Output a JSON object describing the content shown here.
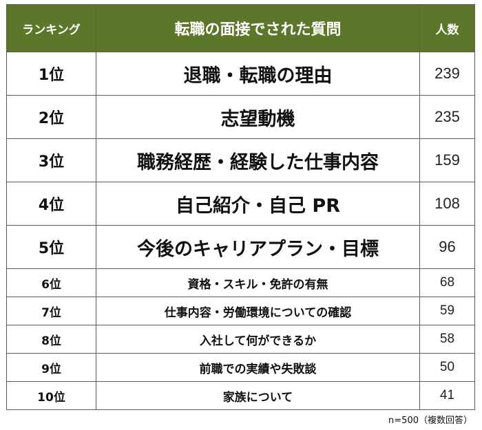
{
  "table": {
    "headers": {
      "rank": "ランキング",
      "question": "転職の面接でされた質問",
      "count": "人数"
    },
    "rows": [
      {
        "rank": "1位",
        "question": "退職・転職の理由",
        "count": "239"
      },
      {
        "rank": "2位",
        "question": "志望動機",
        "count": "235"
      },
      {
        "rank": "3位",
        "question": "職務経歴・経験した仕事内容",
        "count": "159"
      },
      {
        "rank": "4位",
        "question": "自己紹介・自己 PR",
        "count": "108"
      },
      {
        "rank": "5位",
        "question": "今後のキャリアプラン・目標",
        "count": "96"
      },
      {
        "rank": "6位",
        "question": "資格・スキル・免許の有無",
        "count": "68"
      },
      {
        "rank": "7位",
        "question": "仕事内容・労働環境についての確認",
        "count": "59"
      },
      {
        "rank": "8位",
        "question": "入社して何ができるか",
        "count": "58"
      },
      {
        "rank": "9位",
        "question": "前職での実績や失敗談",
        "count": "50"
      },
      {
        "rank": "10位",
        "question": "家族について",
        "count": "41"
      }
    ]
  },
  "footnote": "n=500（複数回答）",
  "colors": {
    "header_background": "#5d772a",
    "header_text": "#ffffff",
    "border": "#5a5a5a"
  }
}
